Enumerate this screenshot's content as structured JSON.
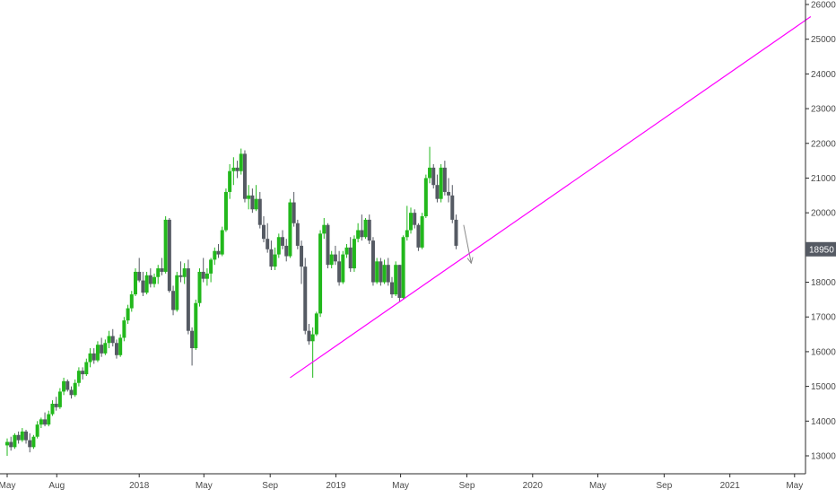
{
  "chart_data": {
    "type": "candlestick",
    "title": "",
    "xlabel": "",
    "ylabel": "",
    "ylim": [
      12600,
      26100
    ],
    "y_ticks": [
      26000,
      25000,
      24000,
      23000,
      22000,
      21000,
      20000,
      18000,
      17000,
      16000,
      15000,
      14000,
      13000
    ],
    "x_ticks": [
      "May",
      "Aug",
      "2018",
      "May",
      "Sep",
      "2019",
      "May",
      "Sep",
      "2020",
      "May",
      "Sep",
      "2021",
      "May"
    ],
    "x_tick_dates": [
      "2017-05-01",
      "2017-08-01",
      "2018-01-01",
      "2018-05-01",
      "2018-09-01",
      "2019-01-01",
      "2019-05-01",
      "2019-09-01",
      "2020-01-01",
      "2020-05-01",
      "2020-09-01",
      "2021-01-01",
      "2021-05-01"
    ],
    "grid": false,
    "legend": "none",
    "last_price": {
      "label": "18950",
      "value": 18950
    },
    "colors": {
      "up": "#22b81c",
      "down": "#555a63",
      "trendline": "#ff00ff",
      "arrow": "#8a8a8a",
      "price_tag_bg": "#555a63",
      "axis": "#2a2a2a"
    },
    "trendline": {
      "start": {
        "date": "2018-10-08",
        "value": 15250
      },
      "end": {
        "date": "2021-05-31",
        "value": 25650
      }
    },
    "arrow": {
      "start": {
        "date": "2019-08-26",
        "value": 19650
      },
      "end": {
        "date": "2019-09-09",
        "value": 18550
      }
    },
    "series": [
      {
        "x_start": "2017-05-01",
        "x_step_days": 7,
        "ohlc": [
          [
            13300,
            13500,
            13000,
            13400
          ],
          [
            13400,
            13550,
            13150,
            13250
          ],
          [
            13250,
            13650,
            13200,
            13600
          ],
          [
            13600,
            13700,
            13350,
            13450
          ],
          [
            13450,
            13800,
            13400,
            13700
          ],
          [
            13700,
            13750,
            13350,
            13450
          ],
          [
            13450,
            13650,
            13100,
            13250
          ],
          [
            13250,
            13600,
            13200,
            13550
          ],
          [
            13550,
            14000,
            13500,
            13900
          ],
          [
            13900,
            14100,
            13800,
            14050
          ],
          [
            14050,
            14250,
            13850,
            13900
          ],
          [
            13900,
            14300,
            13850,
            14200
          ],
          [
            14200,
            14600,
            14150,
            14500
          ],
          [
            14500,
            14700,
            14300,
            14400
          ],
          [
            14400,
            14950,
            14350,
            14850
          ],
          [
            14850,
            15250,
            14750,
            15150
          ],
          [
            15150,
            15200,
            14850,
            14900
          ],
          [
            14900,
            15000,
            14650,
            14750
          ],
          [
            14750,
            15200,
            14700,
            15100
          ],
          [
            15100,
            15550,
            15000,
            15450
          ],
          [
            15450,
            15550,
            15200,
            15350
          ],
          [
            15350,
            15800,
            15300,
            15700
          ],
          [
            15700,
            16100,
            15550,
            15950
          ],
          [
            15950,
            16100,
            15650,
            15750
          ],
          [
            15750,
            16300,
            15700,
            16200
          ],
          [
            16200,
            16400,
            15850,
            15950
          ],
          [
            15950,
            16350,
            15900,
            16250
          ],
          [
            16250,
            16600,
            16100,
            16450
          ],
          [
            16450,
            16650,
            16150,
            16250
          ],
          [
            16250,
            16350,
            15800,
            15900
          ],
          [
            15900,
            16500,
            15850,
            16400
          ],
          [
            16400,
            17000,
            16300,
            16900
          ],
          [
            16900,
            17350,
            16800,
            17250
          ],
          [
            17250,
            17750,
            17150,
            17650
          ],
          [
            17650,
            18400,
            17600,
            18300
          ],
          [
            18300,
            18700,
            18000,
            18050
          ],
          [
            18050,
            18300,
            17600,
            17700
          ],
          [
            17700,
            18300,
            17650,
            18200
          ],
          [
            18200,
            18400,
            17850,
            17950
          ],
          [
            17950,
            18250,
            17850,
            18150
          ],
          [
            18150,
            18500,
            17950,
            18400
          ],
          [
            18400,
            18700,
            18200,
            18300
          ],
          [
            18300,
            19900,
            18250,
            19800
          ],
          [
            19800,
            19850,
            17700,
            17750
          ],
          [
            17750,
            17900,
            17050,
            17200
          ],
          [
            17200,
            18300,
            17150,
            18200
          ],
          [
            18200,
            18600,
            18000,
            18150
          ],
          [
            18150,
            18550,
            17950,
            18400
          ],
          [
            18400,
            18650,
            16500,
            16600
          ],
          [
            16600,
            16700,
            15600,
            16100
          ],
          [
            16100,
            17500,
            16050,
            17400
          ],
          [
            17400,
            18400,
            17300,
            18300
          ],
          [
            18300,
            18700,
            18000,
            18100
          ],
          [
            18100,
            18400,
            17900,
            18250
          ],
          [
            18250,
            18700,
            18000,
            18650
          ],
          [
            18650,
            19000,
            18500,
            18900
          ],
          [
            18900,
            19100,
            18700,
            18800
          ],
          [
            18800,
            19600,
            18750,
            19500
          ],
          [
            19500,
            20700,
            19450,
            20600
          ],
          [
            20600,
            21400,
            20400,
            21200
          ],
          [
            21200,
            21600,
            20800,
            21300
          ],
          [
            21300,
            21500,
            21000,
            21200
          ],
          [
            21200,
            21850,
            21100,
            21700
          ],
          [
            21700,
            21800,
            20300,
            20400
          ],
          [
            20400,
            20800,
            20100,
            20500
          ],
          [
            20500,
            20700,
            20000,
            20100
          ],
          [
            20100,
            20800,
            20050,
            20400
          ],
          [
            20400,
            20600,
            19550,
            19650
          ],
          [
            19650,
            19900,
            19150,
            19250
          ],
          [
            19250,
            19700,
            18850,
            18950
          ],
          [
            18950,
            19200,
            18350,
            18450
          ],
          [
            18450,
            19000,
            18350,
            18800
          ],
          [
            18800,
            19400,
            18700,
            19300
          ],
          [
            19300,
            19500,
            18950,
            19050
          ],
          [
            19050,
            19250,
            18600,
            18750
          ],
          [
            18750,
            20400,
            18700,
            20300
          ],
          [
            20300,
            20600,
            19600,
            19700
          ],
          [
            19700,
            19800,
            18950,
            19050
          ],
          [
            19050,
            19200,
            17950,
            18450
          ],
          [
            18450,
            18700,
            16500,
            16600
          ],
          [
            16600,
            16800,
            16200,
            16300
          ],
          [
            16300,
            16700,
            15250,
            16500
          ],
          [
            16500,
            17150,
            16450,
            17100
          ],
          [
            17100,
            19500,
            17000,
            19400
          ],
          [
            19400,
            19850,
            19250,
            19650
          ],
          [
            19650,
            19700,
            18400,
            18500
          ],
          [
            18500,
            18900,
            18400,
            18800
          ],
          [
            18800,
            19050,
            18500,
            18600
          ],
          [
            18600,
            18900,
            17900,
            18000
          ],
          [
            18000,
            18900,
            17950,
            18800
          ],
          [
            18800,
            19100,
            18700,
            19000
          ],
          [
            19000,
            19300,
            18300,
            18400
          ],
          [
            18400,
            19350,
            18300,
            19250
          ],
          [
            19250,
            19700,
            19150,
            19500
          ],
          [
            19500,
            19950,
            19200,
            19300
          ],
          [
            19300,
            19850,
            19250,
            19800
          ],
          [
            19800,
            19950,
            19100,
            19200
          ],
          [
            19200,
            19300,
            17900,
            18000
          ],
          [
            18000,
            18700,
            17950,
            18600
          ],
          [
            18600,
            18700,
            17900,
            18000
          ],
          [
            18000,
            18650,
            17950,
            18500
          ],
          [
            18500,
            18700,
            17900,
            18000
          ],
          [
            18000,
            18150,
            17550,
            17650
          ],
          [
            17650,
            18600,
            17600,
            18500
          ],
          [
            18500,
            18500,
            17450,
            17550
          ],
          [
            17550,
            19350,
            17500,
            19300
          ],
          [
            19300,
            20200,
            19200,
            19500
          ],
          [
            19500,
            20150,
            19400,
            20000
          ],
          [
            20000,
            20100,
            19550,
            19650
          ],
          [
            19650,
            19700,
            18900,
            19000
          ],
          [
            19000,
            20000,
            18950,
            19900
          ],
          [
            19900,
            21100,
            19850,
            21000
          ],
          [
            21000,
            21900,
            20850,
            21300
          ],
          [
            21300,
            21400,
            20700,
            20800
          ],
          [
            20800,
            21100,
            20300,
            20400
          ],
          [
            20400,
            21400,
            20300,
            21300
          ],
          [
            21300,
            21500,
            20500,
            20600
          ],
          [
            20600,
            21000,
            20300,
            20500
          ],
          [
            20500,
            20800,
            19700,
            19800
          ],
          [
            19800,
            19950,
            18950,
            19050
          ]
        ]
      }
    ]
  }
}
